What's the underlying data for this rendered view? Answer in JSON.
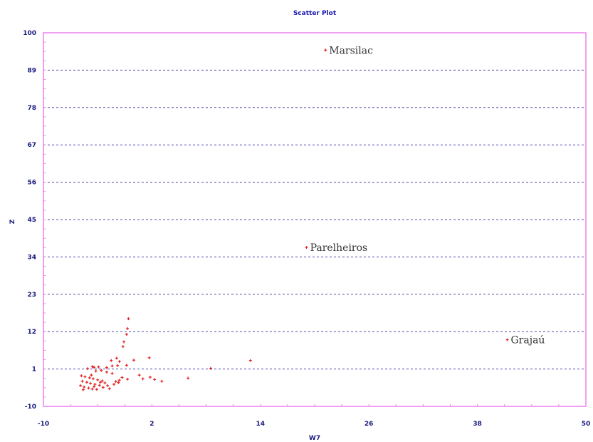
{
  "chart_data": {
    "type": "scatter",
    "title": "Scatter Plot",
    "xlabel": "W7",
    "ylabel": "Z",
    "xlim": [
      -10,
      50
    ],
    "ylim": [
      -10,
      100
    ],
    "x_ticks": [
      "-10",
      "2",
      "14",
      "26",
      "38",
      "50"
    ],
    "y_ticks": [
      "-10",
      "1",
      "12",
      "23",
      "34",
      "45",
      "56",
      "67",
      "78",
      "89",
      "100"
    ],
    "y_tick_values": [
      -10,
      1,
      12,
      23,
      34,
      45,
      56,
      67,
      78,
      89,
      100
    ],
    "x_tick_values": [
      -10,
      2,
      14,
      26,
      38,
      50
    ],
    "grid": "horizontal-dashed",
    "colors": {
      "frame": "#ee82ee",
      "grid": "#4b4bb4",
      "points": "#e02020",
      "text": "#1a1a80"
    },
    "annotations": [
      {
        "label": "Marsilac",
        "x": 21.2,
        "y": 94.9
      },
      {
        "label": "Parelheiros",
        "x": 19.1,
        "y": 36.8
      },
      {
        "label": "Grajaú",
        "x": 41.3,
        "y": 9.6
      }
    ],
    "points": [
      [
        21.2,
        94.9
      ],
      [
        19.1,
        36.8
      ],
      [
        41.3,
        9.6
      ],
      [
        -0.6,
        15.8
      ],
      [
        -0.7,
        12.9
      ],
      [
        -0.8,
        11.2
      ],
      [
        -1.1,
        9.0
      ],
      [
        -1.2,
        7.6
      ],
      [
        1.7,
        4.3
      ],
      [
        0.0,
        3.6
      ],
      [
        -1.9,
        4.2
      ],
      [
        -2.5,
        3.5
      ],
      [
        -1.6,
        3.2
      ],
      [
        -0.8,
        2.1
      ],
      [
        -1.8,
        2.0
      ],
      [
        -2.4,
        1.9
      ],
      [
        -3.0,
        1.4
      ],
      [
        -4.4,
        1.5
      ],
      [
        -5.1,
        1.1
      ],
      [
        -4.6,
        1.7
      ],
      [
        -3.9,
        1.6
      ],
      [
        -4.2,
        0.4
      ],
      [
        -3.6,
        0.6
      ],
      [
        -3.0,
        0.1
      ],
      [
        -4.7,
        -0.8
      ],
      [
        -2.4,
        -0.3
      ],
      [
        -1.3,
        -1.5
      ],
      [
        -0.7,
        -2.0
      ],
      [
        -1.6,
        -2.3
      ],
      [
        -2.0,
        -2.7
      ],
      [
        0.6,
        -0.8
      ],
      [
        1.0,
        -1.9
      ],
      [
        1.8,
        -1.4
      ],
      [
        2.3,
        -2.1
      ],
      [
        3.1,
        -2.6
      ],
      [
        6.0,
        -1.7
      ],
      [
        8.5,
        1.2
      ],
      [
        12.9,
        3.5
      ],
      [
        -5.8,
        -1.0
      ],
      [
        -5.4,
        -1.3
      ],
      [
        -4.9,
        -1.6
      ],
      [
        -4.5,
        -1.9
      ],
      [
        -4.0,
        -2.2
      ],
      [
        -3.5,
        -2.5
      ],
      [
        -5.7,
        -2.6
      ],
      [
        -5.2,
        -2.9
      ],
      [
        -4.8,
        -3.2
      ],
      [
        -4.3,
        -3.5
      ],
      [
        -3.8,
        -3.8
      ],
      [
        -5.9,
        -3.9
      ],
      [
        -5.5,
        -4.3
      ],
      [
        -5.0,
        -4.6
      ],
      [
        -4.6,
        -4.9
      ],
      [
        -4.1,
        -5.0
      ],
      [
        -3.4,
        -4.4
      ],
      [
        -2.9,
        -3.9
      ],
      [
        -2.2,
        -3.5
      ],
      [
        -1.7,
        -3.0
      ],
      [
        -5.6,
        -5.1
      ],
      [
        -4.4,
        -4.2
      ],
      [
        -3.2,
        -3.1
      ],
      [
        -2.7,
        -4.8
      ],
      [
        -3.7,
        -2.9
      ]
    ]
  }
}
